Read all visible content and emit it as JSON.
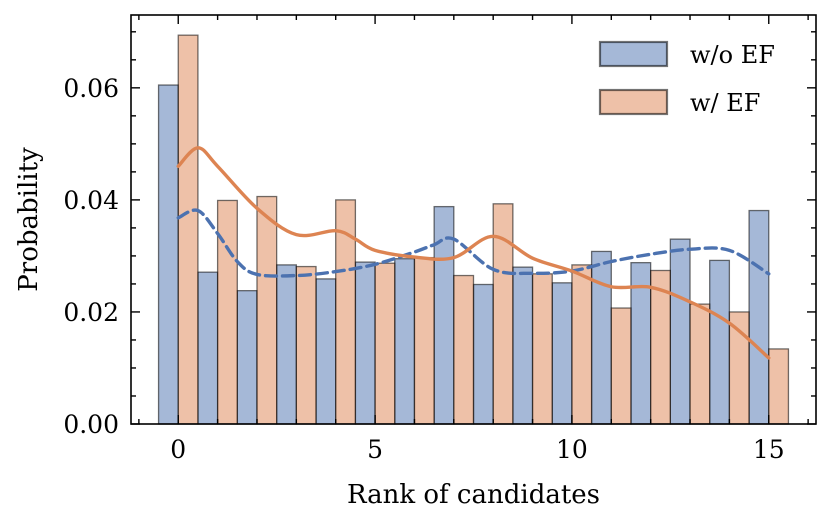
{
  "chart_data": {
    "type": "bar",
    "xlabel": "Rank of candidates",
    "ylabel": "Probability",
    "xlim": [
      -1.2,
      16.2
    ],
    "ylim": [
      0,
      0.073
    ],
    "x_ticks": [
      0,
      5,
      10,
      15
    ],
    "x_tick_labels": [
      "0",
      "5",
      "10",
      "15"
    ],
    "y_ticks": [
      0,
      0.02,
      0.04,
      0.06
    ],
    "y_tick_labels": [
      "0.00",
      "0.02",
      "0.04",
      "0.06"
    ],
    "x_minor_step": 1,
    "y_minor_step": 0.005,
    "legend_position": "top-right",
    "categories": [
      0,
      1,
      2,
      3,
      4,
      5,
      6,
      7,
      8,
      9,
      10,
      11,
      12,
      13,
      14,
      15
    ],
    "series": [
      {
        "name": "w/o EF",
        "color": "#4c72b0",
        "values": [
          0.0605,
          0.0271,
          0.0238,
          0.0284,
          0.0259,
          0.0289,
          0.0295,
          0.0388,
          0.0249,
          0.028,
          0.0252,
          0.0308,
          0.0288,
          0.033,
          0.0292,
          0.0381
        ],
        "kde_x": [
          0,
          0.5,
          1,
          1.5,
          2,
          3,
          4,
          5,
          6,
          6.5,
          7,
          8,
          9,
          10,
          11,
          12,
          13,
          14,
          15
        ],
        "kde_y": [
          0.0368,
          0.0381,
          0.034,
          0.029,
          0.0267,
          0.0265,
          0.0272,
          0.0285,
          0.0307,
          0.032,
          0.033,
          0.0276,
          0.0269,
          0.0273,
          0.029,
          0.0303,
          0.0312,
          0.031,
          0.0268
        ]
      },
      {
        "name": "w/ EF",
        "color": "#dd8452",
        "values": [
          0.0694,
          0.0399,
          0.0406,
          0.0281,
          0.04,
          0.0287,
          0.0297,
          0.0265,
          0.0393,
          0.0268,
          0.0284,
          0.0207,
          0.0274,
          0.0214,
          0.02,
          0.0134
        ],
        "kde_x": [
          0,
          0.5,
          1,
          2,
          3,
          4,
          4.5,
          5,
          6,
          7,
          8,
          9,
          10,
          11,
          12,
          13,
          14,
          15
        ],
        "kde_y": [
          0.046,
          0.0493,
          0.046,
          0.0385,
          0.0338,
          0.0345,
          0.033,
          0.031,
          0.0298,
          0.0297,
          0.0335,
          0.0296,
          0.0273,
          0.0245,
          0.0244,
          0.0218,
          0.018,
          0.0118
        ]
      }
    ]
  }
}
